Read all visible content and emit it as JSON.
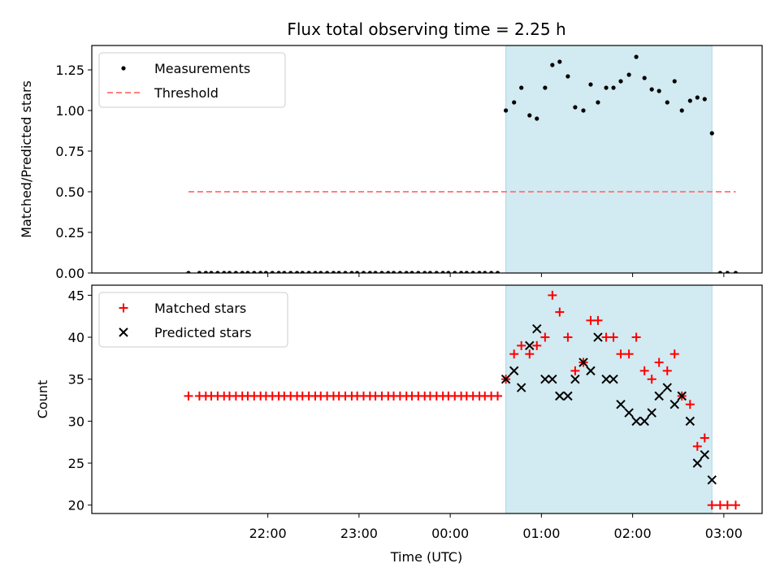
{
  "figure": {
    "title": "Flux total observing time = 2.25 h",
    "xlabel": "Time (UTC)",
    "xtick_labels": [
      "22:00",
      "23:00",
      "00:00",
      "01:00",
      "02:00",
      "03:00"
    ],
    "shade_color": "#add8e6"
  },
  "chart_data": [
    {
      "type": "scatter",
      "ylabel": "Matched/Predicted stars",
      "ylim": [
        0,
        1.4
      ],
      "yticks": [
        0.0,
        0.25,
        0.5,
        0.75,
        1.0,
        1.25
      ],
      "ytick_labels": [
        "0.00",
        "0.25",
        "0.50",
        "0.75",
        "1.00",
        "1.25"
      ],
      "x_unit": "hours after 21:00 UTC",
      "xlim": [
        -0.93,
        6.42
      ],
      "shaded_region": [
        3.61,
        5.87
      ],
      "legend": {
        "placement": "upper left",
        "entries": [
          "Measurements",
          "Threshold"
        ]
      },
      "series": [
        {
          "name": "Measurements",
          "marker": "dot",
          "color": "#000000",
          "x": [
            0.13,
            0.25,
            0.32,
            0.38,
            0.45,
            0.52,
            0.58,
            0.65,
            0.72,
            0.78,
            0.85,
            0.92,
            0.98,
            1.05,
            1.12,
            1.18,
            1.25,
            1.32,
            1.38,
            1.45,
            1.52,
            1.58,
            1.65,
            1.72,
            1.78,
            1.85,
            1.92,
            1.98,
            2.05,
            2.12,
            2.18,
            2.25,
            2.32,
            2.38,
            2.45,
            2.52,
            2.58,
            2.65,
            2.72,
            2.78,
            2.85,
            2.92,
            2.98,
            3.05,
            3.12,
            3.18,
            3.25,
            3.32,
            3.38,
            3.45,
            3.52,
            3.61,
            3.7,
            3.78,
            3.87,
            3.95,
            4.04,
            4.12,
            4.2,
            4.29,
            4.37,
            4.46,
            4.54,
            4.62,
            4.71,
            4.79,
            4.87,
            4.96,
            5.04,
            5.13,
            5.21,
            5.29,
            5.38,
            5.46,
            5.54,
            5.63,
            5.71,
            5.79,
            5.87,
            5.96,
            6.04,
            6.13
          ],
          "y": [
            0,
            0,
            0,
            0,
            0,
            0,
            0,
            0,
            0,
            0,
            0,
            0,
            0,
            0,
            0,
            0,
            0,
            0,
            0,
            0,
            0,
            0,
            0,
            0,
            0,
            0,
            0,
            0,
            0,
            0,
            0,
            0,
            0,
            0,
            0,
            0,
            0,
            0,
            0,
            0,
            0,
            0,
            0,
            0,
            0,
            0,
            0,
            0,
            0,
            0,
            0,
            1.0,
            1.05,
            1.14,
            0.97,
            0.95,
            1.14,
            1.28,
            1.3,
            1.21,
            1.02,
            1.0,
            1.16,
            1.05,
            1.14,
            1.14,
            1.18,
            1.22,
            1.33,
            1.2,
            1.13,
            1.12,
            1.05,
            1.18,
            1.0,
            1.06,
            1.08,
            1.07,
            0.86,
            0,
            0,
            0
          ]
        },
        {
          "name": "Threshold",
          "style": "dashed-line",
          "color": "#ff8080",
          "x": [
            0.13,
            6.13
          ],
          "y": [
            0.5,
            0.5
          ]
        }
      ]
    },
    {
      "type": "scatter",
      "ylabel": "Count",
      "ylim": [
        19,
        46.2
      ],
      "yticks": [
        20,
        25,
        30,
        35,
        40,
        45
      ],
      "ytick_labels": [
        "20",
        "25",
        "30",
        "35",
        "40",
        "45"
      ],
      "x_unit": "hours after 21:00 UTC",
      "xlim": [
        -0.93,
        6.42
      ],
      "shaded_region": [
        3.61,
        5.87
      ],
      "legend": {
        "placement": "upper left",
        "entries": [
          "Matched stars",
          "Predicted stars"
        ]
      },
      "series": [
        {
          "name": "Matched stars",
          "marker": "plus",
          "color": "#ff0000",
          "x": [
            0.13,
            0.25,
            0.32,
            0.38,
            0.45,
            0.52,
            0.58,
            0.65,
            0.72,
            0.78,
            0.85,
            0.92,
            0.98,
            1.05,
            1.12,
            1.18,
            1.25,
            1.32,
            1.38,
            1.45,
            1.52,
            1.58,
            1.65,
            1.72,
            1.78,
            1.85,
            1.92,
            1.98,
            2.05,
            2.12,
            2.18,
            2.25,
            2.32,
            2.38,
            2.45,
            2.52,
            2.58,
            2.65,
            2.72,
            2.78,
            2.85,
            2.92,
            2.98,
            3.05,
            3.12,
            3.18,
            3.25,
            3.32,
            3.38,
            3.45,
            3.52,
            3.61,
            3.7,
            3.78,
            3.87,
            3.95,
            4.04,
            4.12,
            4.2,
            4.29,
            4.37,
            4.46,
            4.54,
            4.62,
            4.71,
            4.79,
            4.87,
            4.96,
            5.04,
            5.13,
            5.21,
            5.29,
            5.38,
            5.46,
            5.54,
            5.63,
            5.71,
            5.79,
            5.87,
            5.96,
            6.04,
            6.13
          ],
          "y": [
            33,
            33,
            33,
            33,
            33,
            33,
            33,
            33,
            33,
            33,
            33,
            33,
            33,
            33,
            33,
            33,
            33,
            33,
            33,
            33,
            33,
            33,
            33,
            33,
            33,
            33,
            33,
            33,
            33,
            33,
            33,
            33,
            33,
            33,
            33,
            33,
            33,
            33,
            33,
            33,
            33,
            33,
            33,
            33,
            33,
            33,
            33,
            33,
            33,
            33,
            33,
            35,
            38,
            39,
            38,
            39,
            40,
            45,
            43,
            40,
            36,
            37,
            42,
            42,
            40,
            40,
            38,
            38,
            40,
            36,
            35,
            37,
            36,
            38,
            33,
            32,
            27,
            28,
            20,
            20,
            20,
            20
          ]
        },
        {
          "name": "Predicted stars",
          "marker": "x",
          "color": "#000000",
          "x": [
            3.61,
            3.7,
            3.78,
            3.87,
            3.95,
            4.04,
            4.12,
            4.2,
            4.29,
            4.37,
            4.46,
            4.54,
            4.62,
            4.71,
            4.79,
            4.87,
            4.96,
            5.04,
            5.13,
            5.21,
            5.29,
            5.38,
            5.46,
            5.54,
            5.63,
            5.71,
            5.79,
            5.87
          ],
          "y": [
            35,
            36,
            34,
            39,
            41,
            35,
            35,
            33,
            33,
            35,
            37,
            36,
            40,
            35,
            35,
            32,
            31,
            30,
            30,
            31,
            33,
            34,
            32,
            33,
            30,
            25,
            26,
            23
          ]
        }
      ]
    }
  ]
}
